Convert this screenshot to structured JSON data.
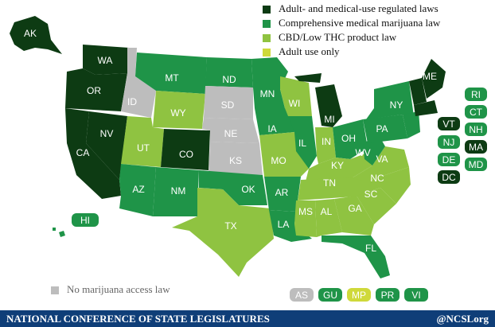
{
  "colors": {
    "adult_medical": "#0d3b13",
    "comprehensive": "#1f9448",
    "cbd": "#8fc341",
    "adult_only": "#cfd93a",
    "no_access": "#bdbdbd"
  },
  "legend": [
    {
      "label": "Adult- and medical-use regulated laws",
      "color": "#0d3b13"
    },
    {
      "label": "Comprehensive medical marijuana law",
      "color": "#1f9448"
    },
    {
      "label": "CBD/Low THC product law",
      "color": "#8fc341"
    },
    {
      "label": "Adult use only",
      "color": "#cfd93a"
    }
  ],
  "no_access_label": "No marijuana access law",
  "states": {
    "AK": "AK",
    "WA": "WA",
    "OR": "OR",
    "CA": "CA",
    "NV": "NV",
    "ID": "ID",
    "MT": "MT",
    "WY": "WY",
    "UT": "UT",
    "CO": "CO",
    "AZ": "AZ",
    "NM": "NM",
    "ND": "ND",
    "SD": "SD",
    "NE": "NE",
    "KS": "KS",
    "OK": "OK",
    "TX": "TX",
    "MN": "MN",
    "IA": "IA",
    "MO": "MO",
    "AR": "AR",
    "LA": "LA",
    "WI": "WI",
    "IL": "IL",
    "MI": "MI",
    "IN": "IN",
    "OH": "OH",
    "KY": "KY",
    "TN": "TN",
    "MS": "MS",
    "AL": "AL",
    "GA": "GA",
    "FL": "FL",
    "SC": "SC",
    "NC": "NC",
    "VA": "VA",
    "WV": "WV",
    "PA": "PA",
    "NY": "NY",
    "ME": "ME",
    "HI": "HI"
  },
  "east_boxes": [
    "RI",
    "CT",
    "VT",
    "NH",
    "NJ",
    "MA",
    "DE",
    "MD",
    "DC"
  ],
  "territories": [
    "AS",
    "GU",
    "MP",
    "PR",
    "VI"
  ],
  "footer": {
    "org": "NATIONAL CONFERENCE OF STATE LEGISLATURES",
    "handle": "@NCSLorg"
  }
}
